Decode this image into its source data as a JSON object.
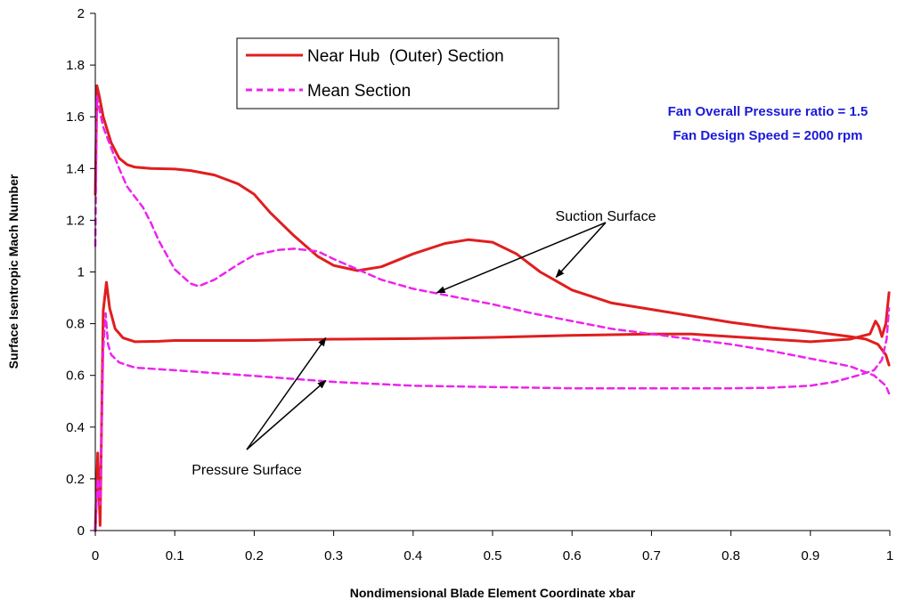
{
  "colors": {
    "hub": "#e01e1e",
    "mean": "#ee22ee",
    "info": "#1a1ad9",
    "axis": "#000000"
  },
  "chart_data": {
    "type": "line",
    "xlabel": "Nondimensional Blade Element Coordinate xbar",
    "ylabel": "Surface Isentropic Mach Number",
    "xlim": [
      0,
      1
    ],
    "ylim": [
      0,
      2
    ],
    "xticks": [
      "0",
      "0.1",
      "0.2",
      "0.3",
      "0.4",
      "0.5",
      "0.6",
      "0.7",
      "0.8",
      "0.9",
      "1"
    ],
    "yticks": [
      "0",
      "0.2",
      "0.4",
      "0.6",
      "0.8",
      "1",
      "1.2",
      "1.4",
      "1.6",
      "1.8",
      "2"
    ],
    "grid": false,
    "legend_position": "top-center",
    "series": [
      {
        "name": "Near Hub  (Outer) Section",
        "style": "solid",
        "color": "#e01e1e",
        "surfaces": [
          {
            "surface": "suction",
            "points": [
              [
                0.0,
                1.3
              ],
              [
                0.002,
                1.72
              ],
              [
                0.005,
                1.68
              ],
              [
                0.01,
                1.6
              ],
              [
                0.02,
                1.5
              ],
              [
                0.03,
                1.44
              ],
              [
                0.04,
                1.415
              ],
              [
                0.05,
                1.405
              ],
              [
                0.07,
                1.4
              ],
              [
                0.1,
                1.398
              ],
              [
                0.12,
                1.392
              ],
              [
                0.15,
                1.375
              ],
              [
                0.18,
                1.34
              ],
              [
                0.2,
                1.3
              ],
              [
                0.22,
                1.23
              ],
              [
                0.25,
                1.14
              ],
              [
                0.28,
                1.06
              ],
              [
                0.3,
                1.025
              ],
              [
                0.33,
                1.005
              ],
              [
                0.36,
                1.02
              ],
              [
                0.4,
                1.07
              ],
              [
                0.44,
                1.11
              ],
              [
                0.47,
                1.125
              ],
              [
                0.5,
                1.115
              ],
              [
                0.53,
                1.07
              ],
              [
                0.56,
                1.0
              ],
              [
                0.6,
                0.93
              ],
              [
                0.65,
                0.88
              ],
              [
                0.7,
                0.855
              ],
              [
                0.75,
                0.83
              ],
              [
                0.8,
                0.805
              ],
              [
                0.85,
                0.785
              ],
              [
                0.9,
                0.77
              ],
              [
                0.95,
                0.75
              ],
              [
                0.97,
                0.74
              ],
              [
                0.985,
                0.72
              ],
              [
                0.995,
                0.68
              ],
              [
                0.999,
                0.64
              ]
            ]
          },
          {
            "surface": "pressure",
            "points": [
              [
                0.0,
                0.0
              ],
              [
                0.003,
                0.3
              ],
              [
                0.006,
                0.02
              ],
              [
                0.01,
                0.85
              ],
              [
                0.014,
                0.96
              ],
              [
                0.018,
                0.86
              ],
              [
                0.025,
                0.78
              ],
              [
                0.035,
                0.745
              ],
              [
                0.05,
                0.73
              ],
              [
                0.08,
                0.732
              ],
              [
                0.1,
                0.735
              ],
              [
                0.2,
                0.735
              ],
              [
                0.3,
                0.74
              ],
              [
                0.4,
                0.742
              ],
              [
                0.5,
                0.747
              ],
              [
                0.6,
                0.755
              ],
              [
                0.7,
                0.76
              ],
              [
                0.75,
                0.76
              ],
              [
                0.8,
                0.75
              ],
              [
                0.85,
                0.74
              ],
              [
                0.9,
                0.73
              ],
              [
                0.95,
                0.74
              ],
              [
                0.975,
                0.76
              ],
              [
                0.982,
                0.81
              ],
              [
                0.986,
                0.79
              ],
              [
                0.99,
                0.75
              ],
              [
                0.995,
                0.8
              ],
              [
                0.999,
                0.92
              ]
            ]
          }
        ]
      },
      {
        "name": "Mean Section",
        "style": "dashed",
        "color": "#ee22ee",
        "surfaces": [
          {
            "surface": "suction",
            "points": [
              [
                0.0,
                1.1
              ],
              [
                0.002,
                1.68
              ],
              [
                0.005,
                1.63
              ],
              [
                0.01,
                1.56
              ],
              [
                0.02,
                1.48
              ],
              [
                0.03,
                1.4
              ],
              [
                0.04,
                1.33
              ],
              [
                0.05,
                1.29
              ],
              [
                0.06,
                1.25
              ],
              [
                0.07,
                1.19
              ],
              [
                0.08,
                1.12
              ],
              [
                0.1,
                1.01
              ],
              [
                0.12,
                0.955
              ],
              [
                0.13,
                0.945
              ],
              [
                0.15,
                0.97
              ],
              [
                0.18,
                1.03
              ],
              [
                0.2,
                1.065
              ],
              [
                0.23,
                1.085
              ],
              [
                0.25,
                1.09
              ],
              [
                0.28,
                1.08
              ],
              [
                0.3,
                1.05
              ],
              [
                0.33,
                1.01
              ],
              [
                0.36,
                0.97
              ],
              [
                0.4,
                0.935
              ],
              [
                0.45,
                0.905
              ],
              [
                0.5,
                0.875
              ],
              [
                0.55,
                0.84
              ],
              [
                0.6,
                0.81
              ],
              [
                0.65,
                0.78
              ],
              [
                0.7,
                0.76
              ],
              [
                0.75,
                0.74
              ],
              [
                0.8,
                0.72
              ],
              [
                0.85,
                0.695
              ],
              [
                0.9,
                0.665
              ],
              [
                0.95,
                0.635
              ],
              [
                0.98,
                0.6
              ],
              [
                0.995,
                0.56
              ],
              [
                0.999,
                0.53
              ]
            ]
          },
          {
            "surface": "pressure",
            "points": [
              [
                0.0,
                0.0
              ],
              [
                0.003,
                0.2
              ],
              [
                0.006,
                0.1
              ],
              [
                0.01,
                0.7
              ],
              [
                0.013,
                0.84
              ],
              [
                0.016,
                0.72
              ],
              [
                0.02,
                0.68
              ],
              [
                0.03,
                0.65
              ],
              [
                0.05,
                0.63
              ],
              [
                0.1,
                0.62
              ],
              [
                0.2,
                0.598
              ],
              [
                0.3,
                0.575
              ],
              [
                0.4,
                0.56
              ],
              [
                0.5,
                0.555
              ],
              [
                0.6,
                0.55
              ],
              [
                0.7,
                0.55
              ],
              [
                0.8,
                0.55
              ],
              [
                0.85,
                0.552
              ],
              [
                0.9,
                0.56
              ],
              [
                0.93,
                0.575
              ],
              [
                0.96,
                0.6
              ],
              [
                0.98,
                0.62
              ],
              [
                0.99,
                0.66
              ],
              [
                0.996,
                0.74
              ],
              [
                0.999,
                0.86
              ]
            ]
          }
        ]
      }
    ],
    "annotations": [
      {
        "text": "Suction Surface",
        "arrows_to": [
          [
            0.43,
            0.92
          ],
          [
            0.58,
            0.98
          ]
        ]
      },
      {
        "text": "Pressure Surface",
        "arrows_to": [
          [
            0.29,
            0.745
          ],
          [
            0.29,
            0.58
          ]
        ]
      }
    ],
    "info_lines": [
      "Fan Overall Pressure ratio = 1.5",
      "Fan Design Speed = 2000 rpm"
    ]
  }
}
